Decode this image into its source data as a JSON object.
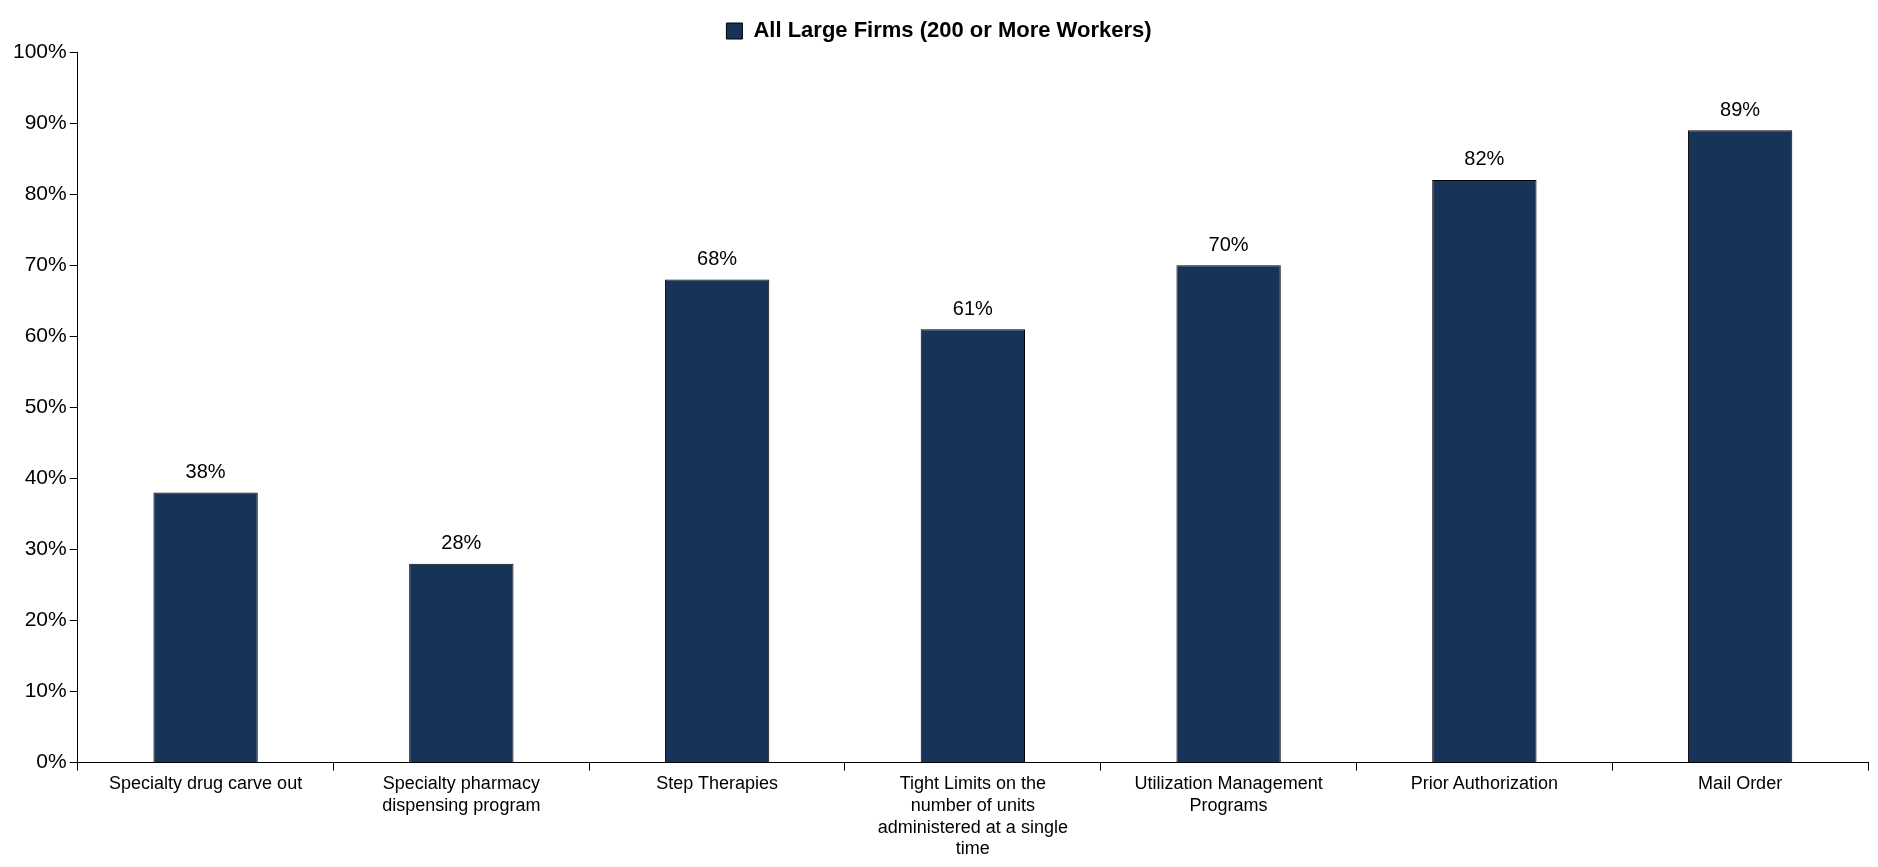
{
  "chart_data": {
    "type": "bar",
    "categories": [
      "Specialty drug carve out",
      "Specialty pharmacy dispensing program",
      "Step Therapies",
      "Tight Limits on the number of units administered at a single time",
      "Utilization Management Programs",
      "Prior Authorization",
      "Mail Order"
    ],
    "series": [
      {
        "name": "All Large Firms (200 or More Workers)",
        "color": "#163458",
        "values": [
          38,
          28,
          68,
          61,
          70,
          82,
          89
        ],
        "value_labels": [
          "38%",
          "28%",
          "68%",
          "61%",
          "70%",
          "82%",
          "89%"
        ]
      }
    ],
    "ylim": [
      0,
      100
    ],
    "yticks": [
      {
        "value": 0,
        "label": "0%"
      },
      {
        "value": 10,
        "label": "10%"
      },
      {
        "value": 20,
        "label": "20%"
      },
      {
        "value": 30,
        "label": "30%"
      },
      {
        "value": 40,
        "label": "40%"
      },
      {
        "value": 50,
        "label": "50%"
      },
      {
        "value": 60,
        "label": "60%"
      },
      {
        "value": 70,
        "label": "70%"
      },
      {
        "value": 80,
        "label": "80%"
      },
      {
        "value": 90,
        "label": "90%"
      },
      {
        "value": 100,
        "label": "100%"
      }
    ],
    "grid": false,
    "legend": "top"
  }
}
